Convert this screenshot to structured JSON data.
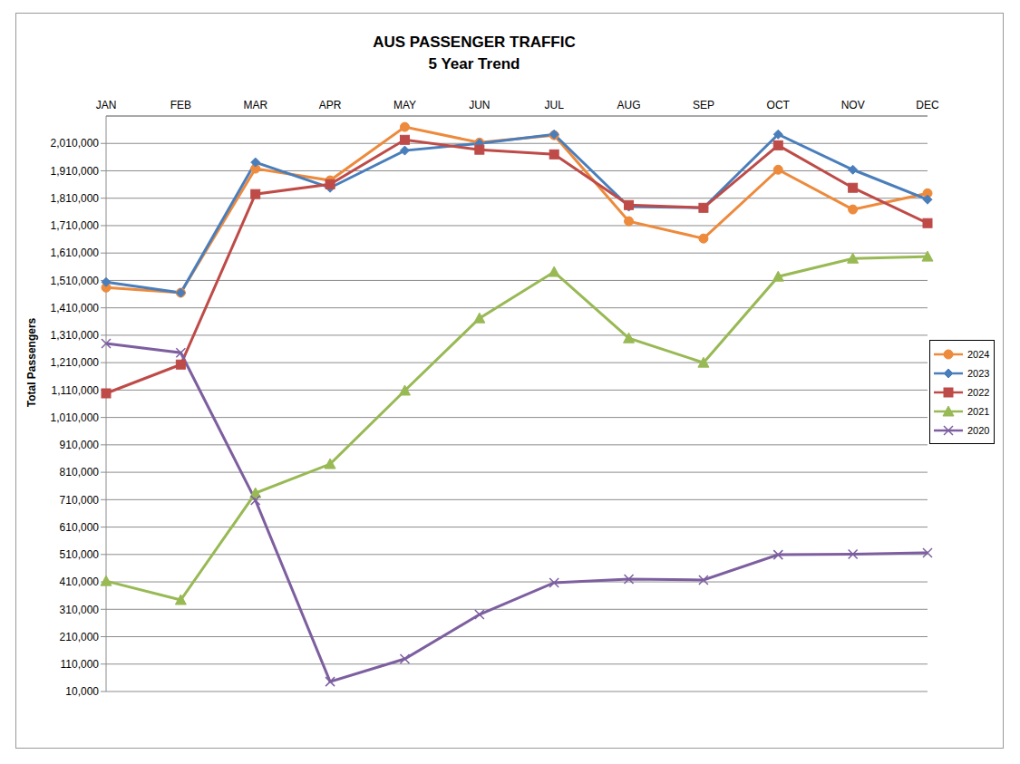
{
  "chart_data": {
    "type": "line",
    "title": "AUS PASSENGER TRAFFIC",
    "subtitle": "5 Year Trend",
    "y_label": "Total Passengers",
    "categories": [
      "JAN",
      "FEB",
      "MAR",
      "APR",
      "MAY",
      "JUN",
      "JUL",
      "AUG",
      "SEP",
      "OCT",
      "NOV",
      "DEC"
    ],
    "series": [
      {
        "name": "2024",
        "color": "#ed8a3c",
        "marker": "circle",
        "values": [
          1484000,
          1465000,
          1918000,
          1875000,
          2070000,
          2013000,
          2040000,
          1726000,
          1663000,
          1914000,
          1769000,
          1828000
        ]
      },
      {
        "name": "2023",
        "color": "#4a7ebb",
        "marker": "diamond",
        "values": [
          1504000,
          1465000,
          1941000,
          1848000,
          1984000,
          2010000,
          2043000,
          1779000,
          1775000,
          2043000,
          1914000,
          1805000
        ]
      },
      {
        "name": "2022",
        "color": "#be4b48",
        "marker": "square",
        "values": [
          1098000,
          1203000,
          1825000,
          1861000,
          2023000,
          1987000,
          1970000,
          1785000,
          1775000,
          2003000,
          1848000,
          1719000
        ]
      },
      {
        "name": "2021",
        "color": "#98b954",
        "marker": "triangle",
        "values": [
          413000,
          344000,
          734000,
          840000,
          1108000,
          1372000,
          1541000,
          1299000,
          1210000,
          1524000,
          1590000,
          1597000
        ]
      },
      {
        "name": "2020",
        "color": "#7d5fa0",
        "marker": "x",
        "values": [
          1280000,
          1246000,
          708000,
          46000,
          129000,
          291000,
          407000,
          420000,
          417000,
          509000,
          511000,
          516000
        ]
      }
    ],
    "ylim": [
      10000,
      2110000
    ],
    "yticks": [
      {
        "value": 10000,
        "label": "10,000"
      },
      {
        "value": 110000,
        "label": "110,000"
      },
      {
        "value": 210000,
        "label": "210,000"
      },
      {
        "value": 310000,
        "label": "310,000"
      },
      {
        "value": 410000,
        "label": "410,000"
      },
      {
        "value": 510000,
        "label": "510,000"
      },
      {
        "value": 610000,
        "label": "610,000"
      },
      {
        "value": 710000,
        "label": "710,000"
      },
      {
        "value": 810000,
        "label": "810,000"
      },
      {
        "value": 910000,
        "label": "910,000"
      },
      {
        "value": 1010000,
        "label": "1,010,000"
      },
      {
        "value": 1110000,
        "label": "1,110,000"
      },
      {
        "value": 1210000,
        "label": "1,210,000"
      },
      {
        "value": 1310000,
        "label": "1,310,000"
      },
      {
        "value": 1410000,
        "label": "1,410,000"
      },
      {
        "value": 1510000,
        "label": "1,510,000"
      },
      {
        "value": 1610000,
        "label": "1,610,000"
      },
      {
        "value": 1710000,
        "label": "1,710,000"
      },
      {
        "value": 1810000,
        "label": "1,810,000"
      },
      {
        "value": 1910000,
        "label": "1,910,000"
      },
      {
        "value": 2010000,
        "label": "2,010,000"
      }
    ],
    "grid": true,
    "legend": "right"
  }
}
